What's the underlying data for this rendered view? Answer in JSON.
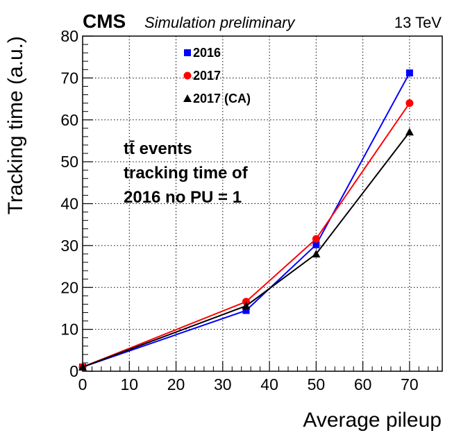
{
  "header": {
    "experiment": "CMS",
    "status": "Simulation preliminary",
    "energy": "13 TeV"
  },
  "annotation": {
    "lines": [
      "tt̄ events",
      "tracking time of",
      "2016 no PU = 1"
    ]
  },
  "chart_data": {
    "type": "line",
    "xlabel": "Average pileup",
    "ylabel": "Tracking time (a.u.)",
    "xlim": [
      0,
      77
    ],
    "ylim": [
      0,
      80
    ],
    "xticks": [
      0,
      10,
      20,
      30,
      40,
      50,
      60,
      70
    ],
    "yticks": [
      0,
      10,
      20,
      30,
      40,
      50,
      60,
      70,
      80
    ],
    "grid": true,
    "legend_position": "top-center",
    "series": [
      {
        "name": "2016",
        "color": "#0000ff",
        "marker": "square",
        "x": [
          0,
          35,
          50,
          70
        ],
        "y": [
          1,
          14.5,
          30.2,
          71.2
        ]
      },
      {
        "name": "2017",
        "color": "#ff0000",
        "marker": "circle",
        "x": [
          0,
          35,
          50,
          70
        ],
        "y": [
          1,
          16.6,
          31.6,
          64
        ]
      },
      {
        "name": "2017 (CA)",
        "color": "#000000",
        "marker": "triangle",
        "x": [
          0,
          35,
          50,
          70
        ],
        "y": [
          1,
          15.6,
          28,
          57.1
        ]
      }
    ]
  }
}
